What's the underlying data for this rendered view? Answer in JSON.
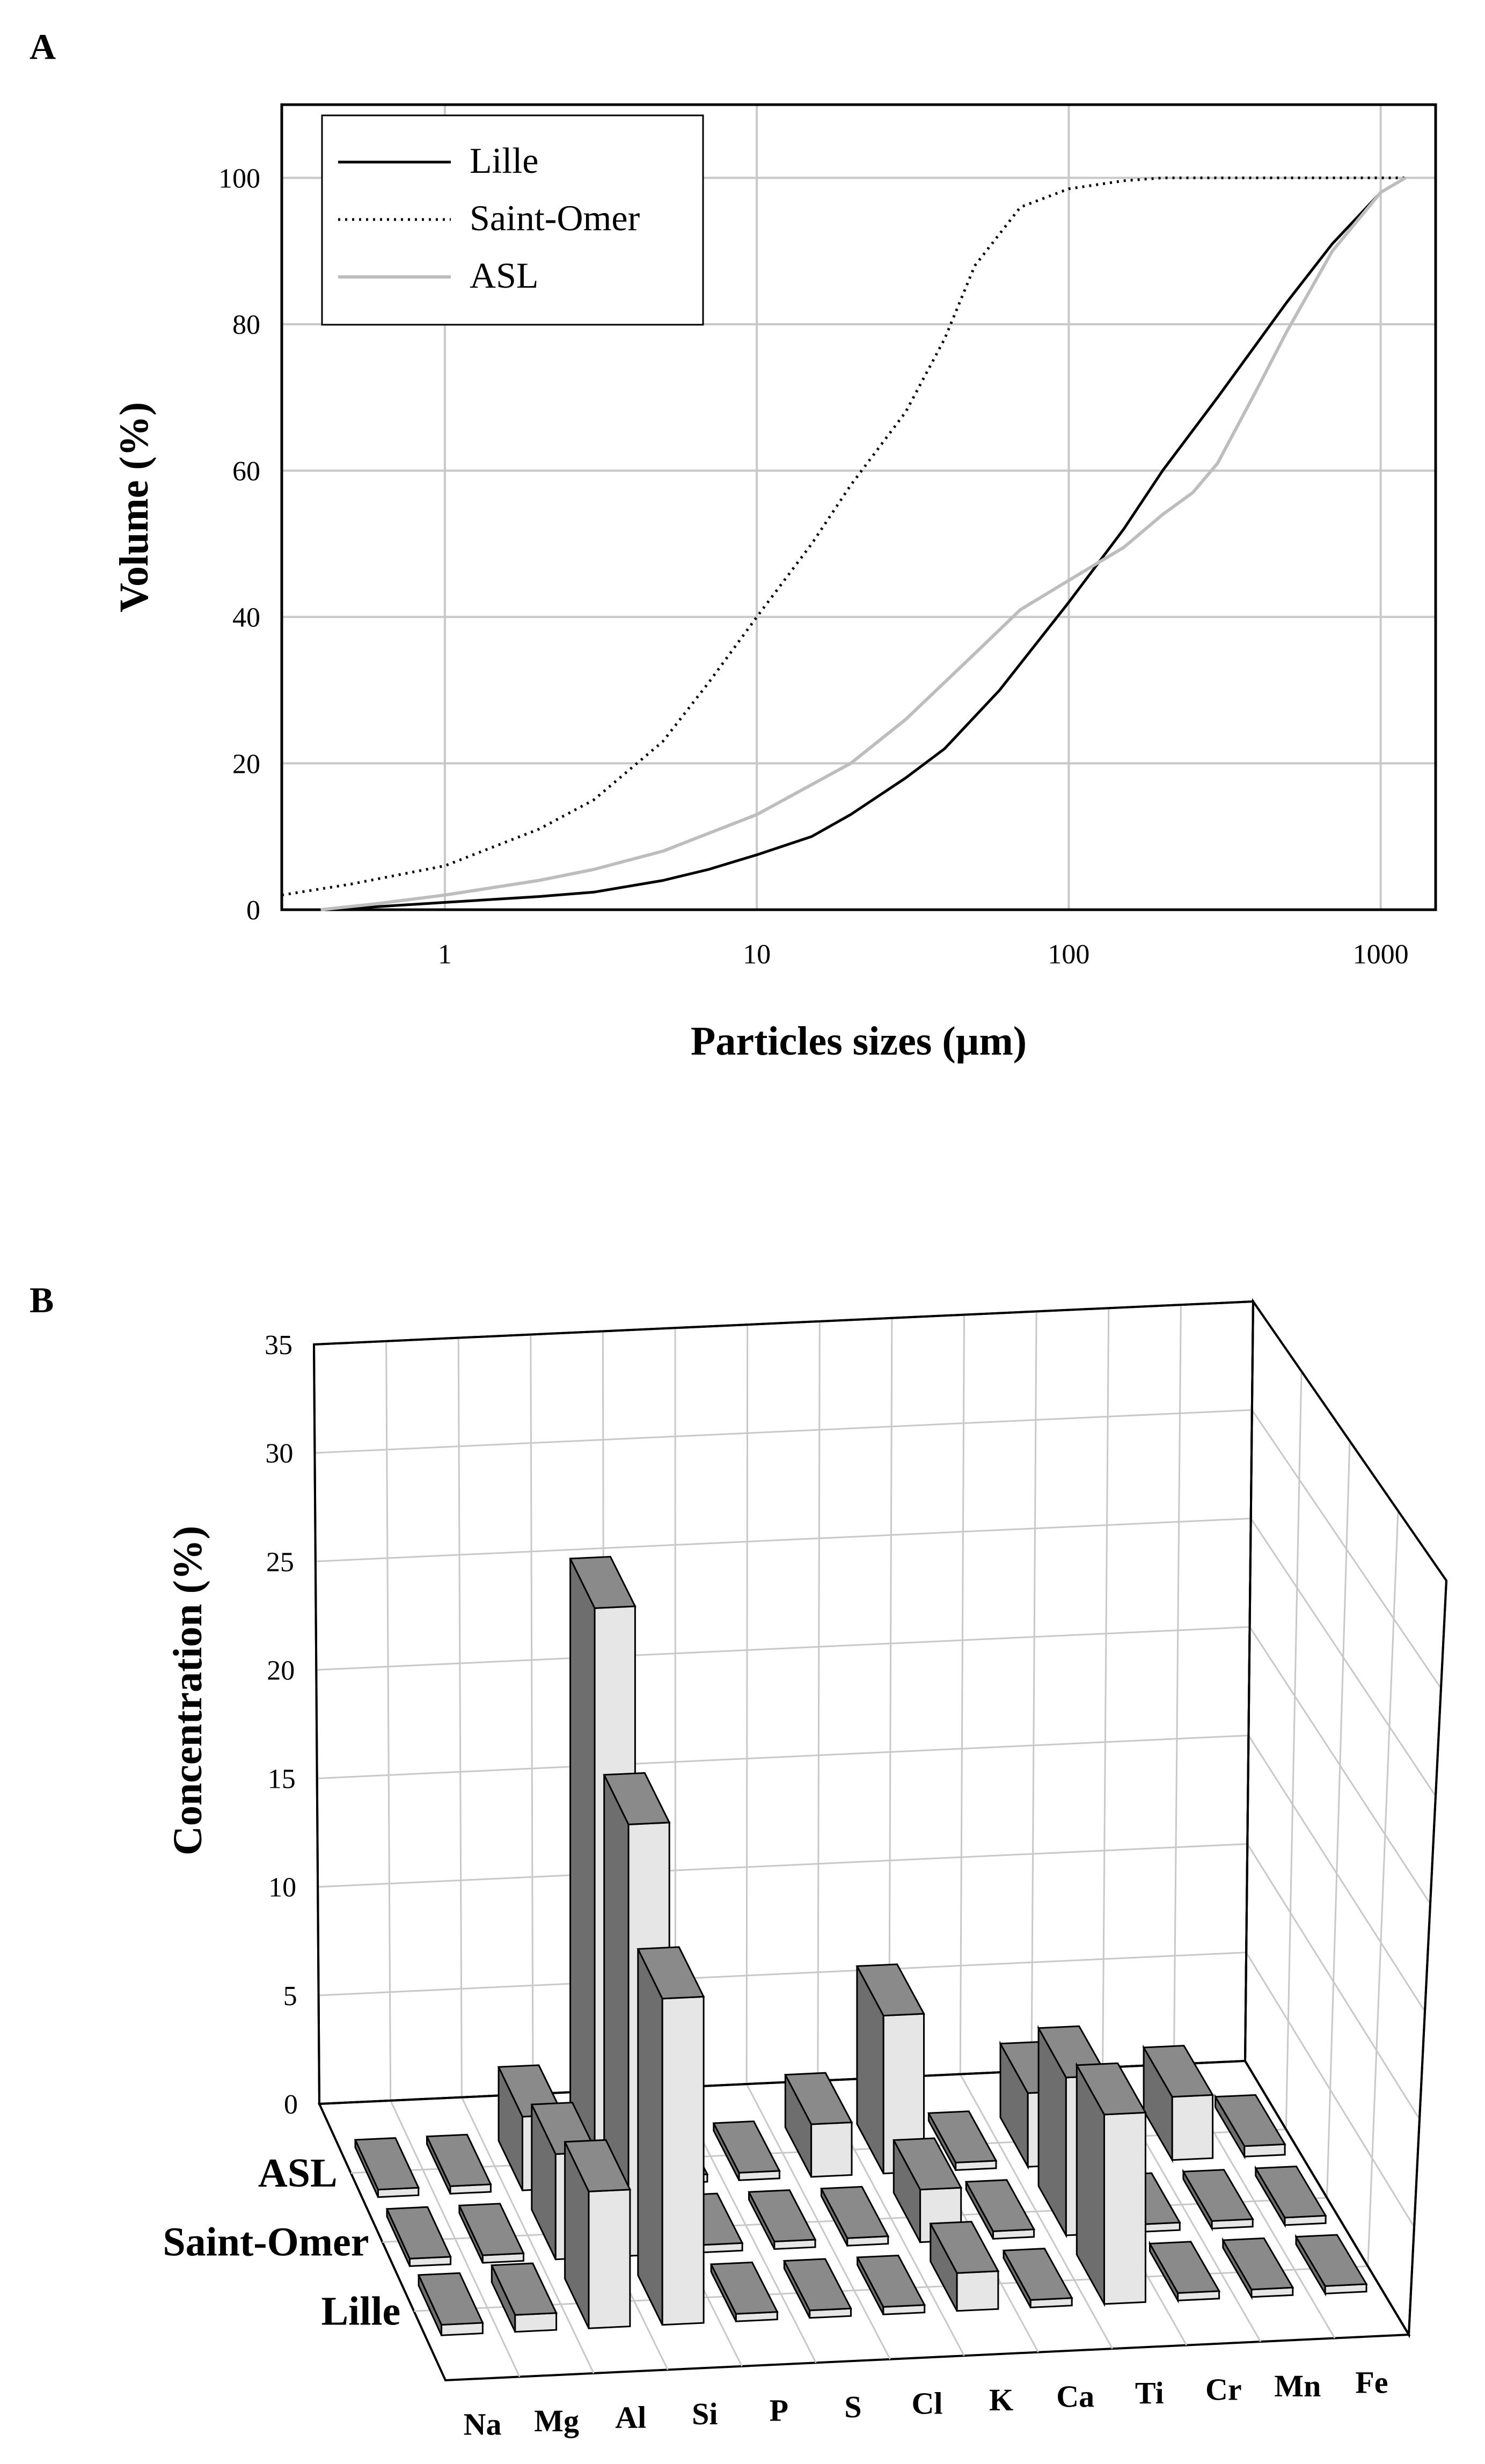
{
  "chart_data": [
    {
      "panel": "A",
      "type": "line",
      "xscale": "log",
      "xlabel": "Particles sizes (µm)",
      "ylabel": "Volume (%)",
      "xlim": [
        0.3,
        1500
      ],
      "ylim": [
        0,
        110
      ],
      "xticks": [
        1,
        10,
        100,
        1000
      ],
      "xtick_labels": [
        "1",
        "10",
        "100",
        "1000"
      ],
      "yticks": [
        0,
        20,
        40,
        60,
        80,
        100
      ],
      "ytick_labels": [
        "0",
        "20",
        "40",
        "60",
        "80",
        "100"
      ],
      "grid": true,
      "legend_position": "top-left",
      "series": [
        {
          "name": "Lille",
          "style": "solid",
          "color": "#000000",
          "x": [
            0.4,
            0.6,
            1,
            2,
            3,
            5,
            7,
            10,
            15,
            20,
            30,
            40,
            60,
            100,
            150,
            200,
            300,
            500,
            700,
            1000,
            1200
          ],
          "y": [
            0,
            0.4,
            1,
            1.8,
            2.4,
            4,
            5.5,
            7.5,
            10,
            13,
            18,
            22,
            30,
            42,
            52,
            60,
            70,
            83,
            91,
            98,
            100
          ]
        },
        {
          "name": "Saint-Omer",
          "style": "dotted",
          "color": "#000000",
          "x": [
            0.3,
            0.5,
            1,
            2,
            3,
            5,
            7,
            10,
            15,
            20,
            30,
            40,
            50,
            70,
            100,
            150,
            200,
            300,
            1000,
            1200
          ],
          "y": [
            2,
            3.5,
            6,
            11,
            15,
            23,
            31,
            40,
            50,
            58,
            68,
            78,
            88,
            96,
            98.5,
            99.6,
            100,
            100,
            100,
            100
          ]
        },
        {
          "name": "ASL",
          "style": "solid",
          "color": "#bdbdbd",
          "x": [
            0.4,
            0.6,
            1,
            2,
            3,
            5,
            10,
            20,
            30,
            50,
            70,
            100,
            150,
            200,
            250,
            300,
            400,
            500,
            700,
            1000,
            1200
          ],
          "y": [
            0,
            0.8,
            2,
            4,
            5.5,
            8,
            13,
            20,
            26,
            35,
            41,
            45,
            49.5,
            54,
            57,
            61,
            71,
            79,
            90,
            98,
            100
          ]
        }
      ]
    },
    {
      "panel": "B",
      "type": "bar3d",
      "ylabel": "Concentration (%)",
      "ylim": [
        0,
        35
      ],
      "yticks": [
        0,
        5,
        10,
        15,
        20,
        25,
        30,
        35
      ],
      "ytick_labels": [
        "0",
        "5",
        "10",
        "15",
        "20",
        "25",
        "30",
        "35"
      ],
      "categories": [
        "Na",
        "Mg",
        "Al",
        "Si",
        "P",
        "S",
        "Cl",
        "K",
        "Ca",
        "Ti",
        "Cr",
        "Mn",
        "Fe"
      ],
      "series": [
        {
          "name": "ASL",
          "values": [
            0.1,
            0.1,
            3.5,
            27.5,
            0.1,
            0.1,
            2.5,
            7.5,
            0.1,
            3.5,
            1.5,
            3.0,
            0.5
          ]
        },
        {
          "name": "Saint-Omer",
          "values": [
            0.1,
            0.3,
            5.0,
            20.5,
            0.1,
            0.1,
            0.1,
            2.5,
            0.1,
            7.5,
            0.1,
            0.1,
            0.1
          ]
        },
        {
          "name": "Lille",
          "values": [
            0.5,
            0.8,
            6.5,
            15.5,
            0.1,
            0.1,
            0.1,
            1.8,
            0.1,
            9.0,
            0.1,
            0.1,
            0.1
          ]
        }
      ],
      "grid": true
    }
  ],
  "panel_a": {
    "letter": "A"
  },
  "panel_b": {
    "letter": "B"
  }
}
